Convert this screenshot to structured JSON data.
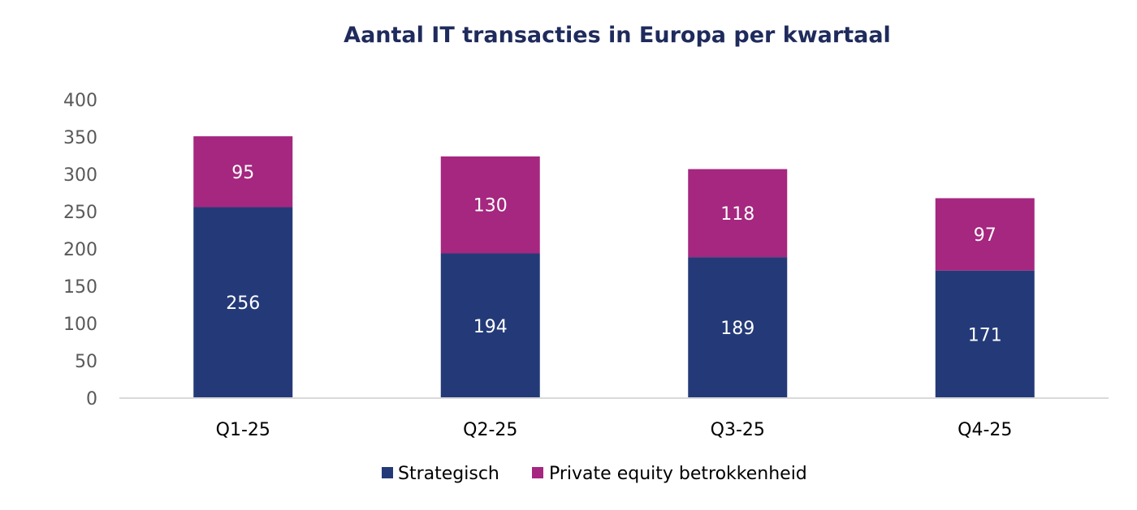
{
  "colors": {
    "strategisch": "#243a78",
    "private_equity": "#a5277f",
    "axis": "#d9d9d9",
    "tick_text": "#595959",
    "title": "#1f2b5c"
  },
  "chart_data": {
    "type": "bar",
    "stacked": true,
    "title": "Aantal IT transacties in Europa per kwartaal",
    "xlabel": "",
    "ylabel": "",
    "categories": [
      "Q1-25",
      "Q2-25",
      "Q3-25",
      "Q4-25"
    ],
    "ylim": [
      0,
      400
    ],
    "yticks": [
      0,
      50,
      100,
      150,
      200,
      250,
      300,
      350,
      400
    ],
    "grid": false,
    "legend_position": "bottom",
    "series": [
      {
        "name": "Strategisch",
        "values": [
          256,
          194,
          189,
          171
        ],
        "color": "#243a78"
      },
      {
        "name": "Private equity betrokkenheid",
        "values": [
          95,
          130,
          118,
          97
        ],
        "color": "#a5277f"
      }
    ]
  }
}
